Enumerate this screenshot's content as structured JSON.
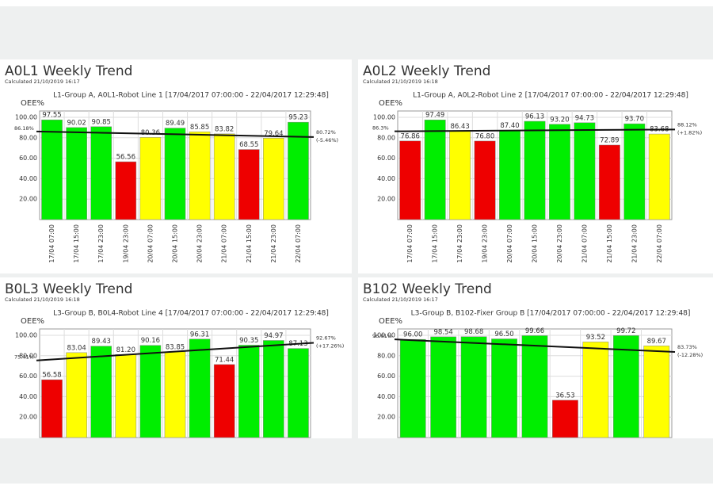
{
  "chart_data": [
    {
      "type": "bar",
      "title": "A0L1 Weekly Trend",
      "note": "Calculated 21/10/2019 16:17",
      "subtitle": "L1-Group A, A0L1-Robot Line 1  [17/04/2017 07:00:00 - 22/04/2017 12:29:48]",
      "ylabel": "OEE%",
      "categories": [
        "17/04 07:00",
        "17/04 15:00",
        "17/04 23:00",
        "19/04 23:00",
        "20/04 07:00",
        "20/04 15:00",
        "20/04 23:00",
        "21/04 07:00",
        "21/04 15:00",
        "21/04 23:00",
        "22/04 07:00"
      ],
      "values": [
        97.55,
        90.02,
        90.85,
        56.56,
        80.36,
        89.49,
        85.85,
        83.82,
        68.55,
        79.64,
        95.23
      ],
      "value_labels": [
        "97.55",
        "90.02",
        "90.85",
        "56.56",
        "80.36",
        "89.49",
        "85.85",
        "83.82",
        "68.55",
        "79.64",
        "95.23"
      ],
      "colors": [
        "#00ee00",
        "#00ee00",
        "#00ee00",
        "#ee0000",
        "#ffff00",
        "#00ee00",
        "#ffff00",
        "#ffff00",
        "#ee0000",
        "#ffff00",
        "#00ee00"
      ],
      "ylim": [
        0,
        100
      ],
      "yticks": [
        {
          "value": 20,
          "label": "20.00"
        },
        {
          "value": 40,
          "label": "40.00"
        },
        {
          "value": 60,
          "label": "60.00"
        },
        {
          "value": 80,
          "label": "80.00"
        },
        {
          "value": 100,
          "label": "100.00"
        }
      ],
      "grid": true,
      "trend": {
        "values": [
          86.18,
          80.72
        ],
        "value_labels": [
          "86.18%",
          "80.72%"
        ],
        "change": "(-5.46%)"
      }
    },
    {
      "type": "bar",
      "title": "A0L2 Weekly Trend",
      "note": "Calculated 21/10/2019 16:18",
      "subtitle": "L1-Group A, A0L2-Robot Line 2  [17/04/2017 07:00:00 - 22/04/2017 12:29:48]",
      "ylabel": "OEE%",
      "categories": [
        "17/04 07:00",
        "17/04 15:00",
        "17/04 23:00",
        "19/04 23:00",
        "20/04 07:00",
        "20/04 15:00",
        "20/04 23:00",
        "21/04 07:00",
        "21/04 15:00",
        "21/04 23:00",
        "22/04 07:00"
      ],
      "values": [
        76.86,
        97.49,
        86.43,
        76.8,
        87.4,
        96.13,
        93.2,
        94.73,
        72.89,
        93.7,
        83.68
      ],
      "value_labels": [
        "76.86",
        "97.49",
        "86.43",
        "76.80",
        "87.40",
        "96.13",
        "93.20",
        "94.73",
        "72.89",
        "93.70",
        "83.68"
      ],
      "colors": [
        "#ee0000",
        "#00ee00",
        "#ffff00",
        "#ee0000",
        "#00ee00",
        "#00ee00",
        "#00ee00",
        "#00ee00",
        "#ee0000",
        "#00ee00",
        "#ffff00"
      ],
      "ylim": [
        0,
        100
      ],
      "yticks": [
        {
          "value": 20,
          "label": "20.00"
        },
        {
          "value": 40,
          "label": "40.00"
        },
        {
          "value": 60,
          "label": "60.00"
        },
        {
          "value": 80,
          "label": "80.00"
        },
        {
          "value": 100,
          "label": "100.00"
        }
      ],
      "grid": true,
      "trend": {
        "values": [
          86.3,
          88.12
        ],
        "value_labels": [
          "86.3%",
          "88.12%"
        ],
        "change": "(+1.82%)"
      }
    },
    {
      "type": "bar",
      "title": "B0L3 Weekly Trend",
      "note": "Calculated 21/10/2019 16:18",
      "subtitle": "L3-Group B, B0L4-Robot Line 4  [17/04/2017 07:00:00 - 22/04/2017 12:29:48]",
      "ylabel": "OEE%",
      "values": [
        56.58,
        83.04,
        89.43,
        81.2,
        90.16,
        83.85,
        96.31,
        71.44,
        90.35,
        94.97,
        87.13
      ],
      "value_labels": [
        "56.58",
        "83.04",
        "89.43",
        "81.20",
        "90.16",
        "83.85",
        "96.31",
        "71.44",
        "90.35",
        "94.97",
        "87.13"
      ],
      "colors": [
        "#ee0000",
        "#ffff00",
        "#00ee00",
        "#ffff00",
        "#00ee00",
        "#ffff00",
        "#00ee00",
        "#ee0000",
        "#00ee00",
        "#00ee00",
        "#00ee00"
      ],
      "ylim": [
        0,
        100
      ],
      "yticks": [
        {
          "value": 20,
          "label": "20.00"
        },
        {
          "value": 40,
          "label": "40.00"
        },
        {
          "value": 60,
          "label": "60.00"
        },
        {
          "value": 80,
          "label": "80.00"
        },
        {
          "value": 100,
          "label": "100.00"
        }
      ],
      "grid": true,
      "trend": {
        "values": [
          75.41,
          92.67
        ],
        "value_labels": [
          "75.41%",
          "92.67%"
        ],
        "change": "(+17.26%)"
      }
    },
    {
      "type": "bar",
      "title": "B102 Weekly Trend",
      "note": "Calculated 21/10/2019 16:17",
      "subtitle": "L3-Group B, B102-Fixer Group B  [17/04/2017 07:00:00 - 22/04/2017 12:29:48]",
      "ylabel": "OEE%",
      "values": [
        96.0,
        98.54,
        98.68,
        96.5,
        99.66,
        36.53,
        93.52,
        99.72,
        89.67
      ],
      "value_labels": [
        "96.00",
        "98.54",
        "98.68",
        "96.50",
        "99.66",
        "36.53",
        "93.52",
        "99.72",
        "89.67"
      ],
      "colors": [
        "#00ee00",
        "#00ee00",
        "#00ee00",
        "#00ee00",
        "#00ee00",
        "#ee0000",
        "#ffff00",
        "#00ee00",
        "#ffff00"
      ],
      "ylim": [
        0,
        100
      ],
      "yticks": [
        {
          "value": 20,
          "label": "20.00"
        },
        {
          "value": 40,
          "label": "40.00"
        },
        {
          "value": 60,
          "label": "60.00"
        },
        {
          "value": 80,
          "label": "80.00"
        },
        {
          "value": 100,
          "label": "100.00"
        }
      ],
      "grid": true,
      "trend": {
        "values": [
          96.01,
          83.73
        ],
        "value_labels": [
          "96.01%",
          "83.73%"
        ],
        "change": "(-12.28%)"
      }
    }
  ]
}
